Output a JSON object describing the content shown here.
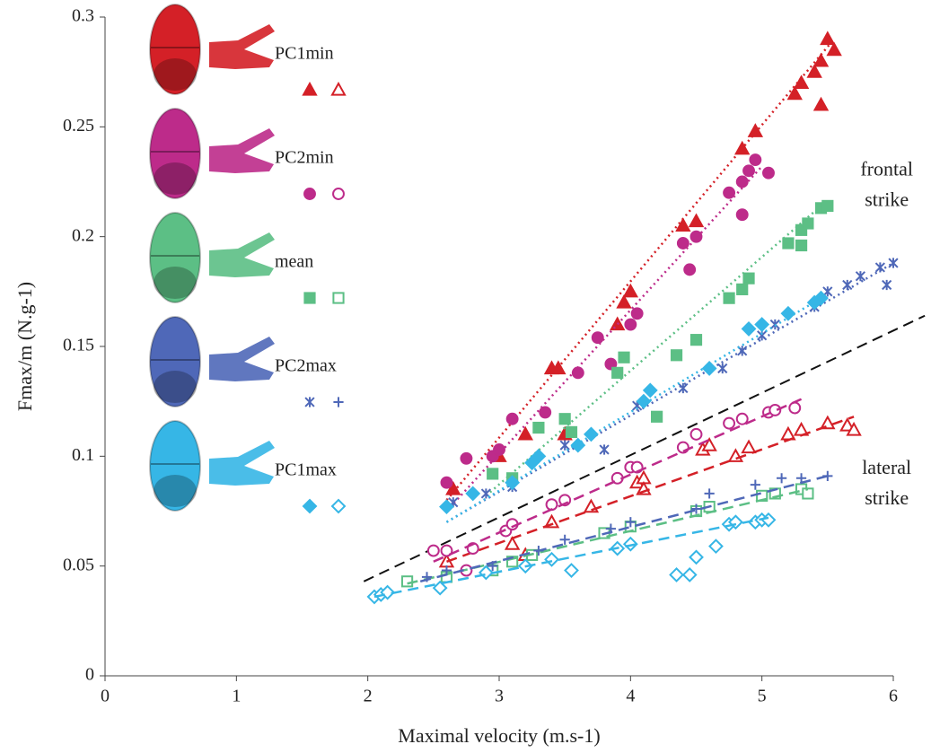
{
  "chart_data": {
    "type": "scatter",
    "x_label": "Maximal velocity (m.s-1)",
    "y_label": "Fmax/m (N.g-1)",
    "xlim": [
      0,
      6
    ],
    "xticks": [
      0,
      1,
      2,
      3,
      4,
      5,
      6
    ],
    "ylim": [
      0,
      0.3
    ],
    "yticks": [
      0,
      0.05,
      0.1,
      0.15,
      0.2,
      0.25,
      0.3
    ],
    "reference_line": {
      "x": [
        1.97,
        6.24
      ],
      "y": [
        0.043,
        0.164
      ],
      "color": "#111111",
      "style": "dashed"
    },
    "annotations": [
      {
        "lines": [
          "frontal",
          "strike"
        ],
        "x": 5.95,
        "y": 0.23
      },
      {
        "lines": [
          "lateral",
          "strike"
        ],
        "x": 5.95,
        "y": 0.094
      }
    ],
    "groups": [
      {
        "name": "PC1min",
        "color": "#d42027",
        "frontal": {
          "marker": "triangle",
          "filled": true,
          "line_style": "dotted",
          "x": [
            2.65,
            3.0,
            3.2,
            3.4,
            3.45,
            3.5,
            3.9,
            3.95,
            4.0,
            4.4,
            4.5,
            4.85,
            4.95,
            5.25,
            5.3,
            5.4,
            5.45,
            5.5,
            5.55,
            5.45
          ],
          "y": [
            0.085,
            0.1,
            0.11,
            0.14,
            0.14,
            0.11,
            0.16,
            0.17,
            0.175,
            0.205,
            0.207,
            0.24,
            0.248,
            0.265,
            0.27,
            0.275,
            0.28,
            0.29,
            0.285,
            0.26
          ],
          "fit": {
            "x": [
              2.6,
              5.55
            ],
            "y": [
              0.08,
              0.29
            ]
          }
        },
        "lateral": {
          "marker": "triangle",
          "filled": false,
          "line_style": "dashed",
          "x": [
            2.6,
            3.1,
            3.2,
            3.4,
            3.7,
            4.05,
            4.1,
            4.1,
            4.55,
            4.6,
            4.8,
            4.9,
            5.2,
            5.3,
            5.5,
            5.65,
            5.7
          ],
          "y": [
            0.052,
            0.06,
            0.055,
            0.07,
            0.077,
            0.088,
            0.09,
            0.085,
            0.103,
            0.105,
            0.1,
            0.104,
            0.11,
            0.112,
            0.115,
            0.114,
            0.112
          ],
          "fit": {
            "x": [
              2.6,
              5.7
            ],
            "y": [
              0.052,
              0.118
            ]
          }
        }
      },
      {
        "name": "PC2min",
        "color": "#bd2b8a",
        "frontal": {
          "marker": "circle",
          "filled": true,
          "line_style": "dotted",
          "x": [
            2.6,
            2.75,
            2.95,
            3.0,
            3.1,
            3.35,
            3.6,
            3.75,
            3.85,
            4.0,
            4.05,
            4.4,
            4.5,
            4.45,
            4.75,
            4.85,
            4.85,
            4.9,
            4.95,
            5.05
          ],
          "y": [
            0.088,
            0.099,
            0.1,
            0.103,
            0.117,
            0.12,
            0.138,
            0.154,
            0.142,
            0.16,
            0.165,
            0.197,
            0.2,
            0.185,
            0.22,
            0.225,
            0.21,
            0.23,
            0.235,
            0.229
          ],
          "fit": {
            "x": [
              2.6,
              5.0
            ],
            "y": [
              0.075,
              0.232
            ]
          }
        },
        "lateral": {
          "marker": "circle",
          "filled": false,
          "line_style": "dashed",
          "x": [
            2.5,
            2.6,
            2.8,
            2.75,
            3.05,
            3.1,
            3.4,
            3.5,
            3.9,
            4.0,
            4.05,
            4.4,
            4.5,
            4.75,
            4.85,
            5.05,
            5.1,
            5.25
          ],
          "y": [
            0.057,
            0.057,
            0.058,
            0.048,
            0.066,
            0.069,
            0.078,
            0.08,
            0.09,
            0.095,
            0.095,
            0.104,
            0.11,
            0.115,
            0.117,
            0.12,
            0.121,
            0.122
          ],
          "fit": {
            "x": [
              2.5,
              5.3
            ],
            "y": [
              0.052,
              0.126
            ]
          }
        }
      },
      {
        "name": "mean",
        "color": "#5cbf85",
        "frontal": {
          "marker": "square",
          "filled": true,
          "line_style": "dotted",
          "x": [
            2.95,
            3.1,
            3.3,
            3.5,
            3.55,
            3.9,
            3.95,
            4.2,
            4.35,
            4.5,
            4.75,
            4.85,
            4.9,
            5.2,
            5.3,
            5.35,
            5.3,
            5.45,
            5.5
          ],
          "y": [
            0.092,
            0.09,
            0.113,
            0.117,
            0.111,
            0.138,
            0.145,
            0.118,
            0.146,
            0.153,
            0.172,
            0.176,
            0.181,
            0.197,
            0.203,
            0.206,
            0.196,
            0.213,
            0.214
          ],
          "fit": {
            "x": [
              2.9,
              5.45
            ],
            "y": [
              0.082,
              0.214
            ]
          }
        },
        "lateral": {
          "marker": "square",
          "filled": false,
          "line_style": "dashed",
          "x": [
            2.3,
            2.6,
            2.95,
            3.1,
            3.25,
            3.8,
            4.0,
            4.5,
            4.6,
            5.0,
            5.1,
            5.3,
            5.35
          ],
          "y": [
            0.043,
            0.045,
            0.048,
            0.052,
            0.055,
            0.065,
            0.068,
            0.075,
            0.077,
            0.082,
            0.083,
            0.085,
            0.083
          ],
          "fit": {
            "x": [
              2.3,
              5.35
            ],
            "y": [
              0.042,
              0.085
            ]
          }
        }
      },
      {
        "name": "PC2max",
        "color": "#4f68b8",
        "frontal": {
          "marker": "cross",
          "filled": true,
          "line_style": "dotted",
          "x": [
            2.65,
            2.9,
            3.1,
            3.5,
            3.8,
            4.05,
            4.4,
            4.7,
            4.85,
            5.0,
            5.1,
            5.4,
            5.5,
            5.65,
            5.75,
            5.9,
            6.0,
            5.95
          ],
          "y": [
            0.079,
            0.083,
            0.086,
            0.105,
            0.103,
            0.123,
            0.131,
            0.14,
            0.148,
            0.155,
            0.16,
            0.168,
            0.175,
            0.178,
            0.182,
            0.186,
            0.188,
            0.178
          ],
          "fit": {
            "x": [
              2.6,
              6.0
            ],
            "y": [
              0.07,
              0.188
            ]
          }
        },
        "lateral": {
          "marker": "plus",
          "filled": false,
          "line_style": "dashed",
          "x": [
            2.45,
            2.6,
            2.95,
            3.3,
            3.5,
            3.85,
            4.0,
            4.5,
            4.6,
            4.95,
            5.15,
            5.3,
            5.5
          ],
          "y": [
            0.045,
            0.048,
            0.05,
            0.057,
            0.062,
            0.067,
            0.07,
            0.076,
            0.083,
            0.087,
            0.09,
            0.09,
            0.091
          ],
          "fit": {
            "x": [
              2.4,
              5.5
            ],
            "y": [
              0.043,
              0.091
            ]
          }
        }
      },
      {
        "name": "PC1max",
        "color": "#36b6e6",
        "frontal": {
          "marker": "diamond",
          "filled": true,
          "line_style": "dotted",
          "x": [
            2.6,
            2.8,
            3.1,
            3.25,
            3.3,
            3.6,
            3.7,
            4.1,
            4.15,
            4.6,
            4.9,
            5.0,
            5.2,
            5.4,
            5.45
          ],
          "y": [
            0.077,
            0.083,
            0.088,
            0.097,
            0.1,
            0.105,
            0.11,
            0.125,
            0.13,
            0.14,
            0.158,
            0.16,
            0.165,
            0.17,
            0.172
          ],
          "fit": {
            "x": [
              2.6,
              5.45
            ],
            "y": [
              0.07,
              0.172
            ]
          }
        },
        "lateral": {
          "marker": "diamond",
          "filled": false,
          "line_style": "dashed",
          "x": [
            2.05,
            2.1,
            2.15,
            2.55,
            2.9,
            3.2,
            3.4,
            3.55,
            3.9,
            4.0,
            4.35,
            4.45,
            4.5,
            4.65,
            4.75,
            4.8,
            4.95,
            5.0,
            5.05
          ],
          "y": [
            0.036,
            0.037,
            0.038,
            0.04,
            0.047,
            0.05,
            0.053,
            0.048,
            0.058,
            0.06,
            0.046,
            0.046,
            0.054,
            0.059,
            0.069,
            0.07,
            0.07,
            0.071,
            0.071
          ],
          "fit": {
            "x": [
              2.05,
              5.05
            ],
            "y": [
              0.036,
              0.072
            ]
          }
        }
      }
    ]
  }
}
